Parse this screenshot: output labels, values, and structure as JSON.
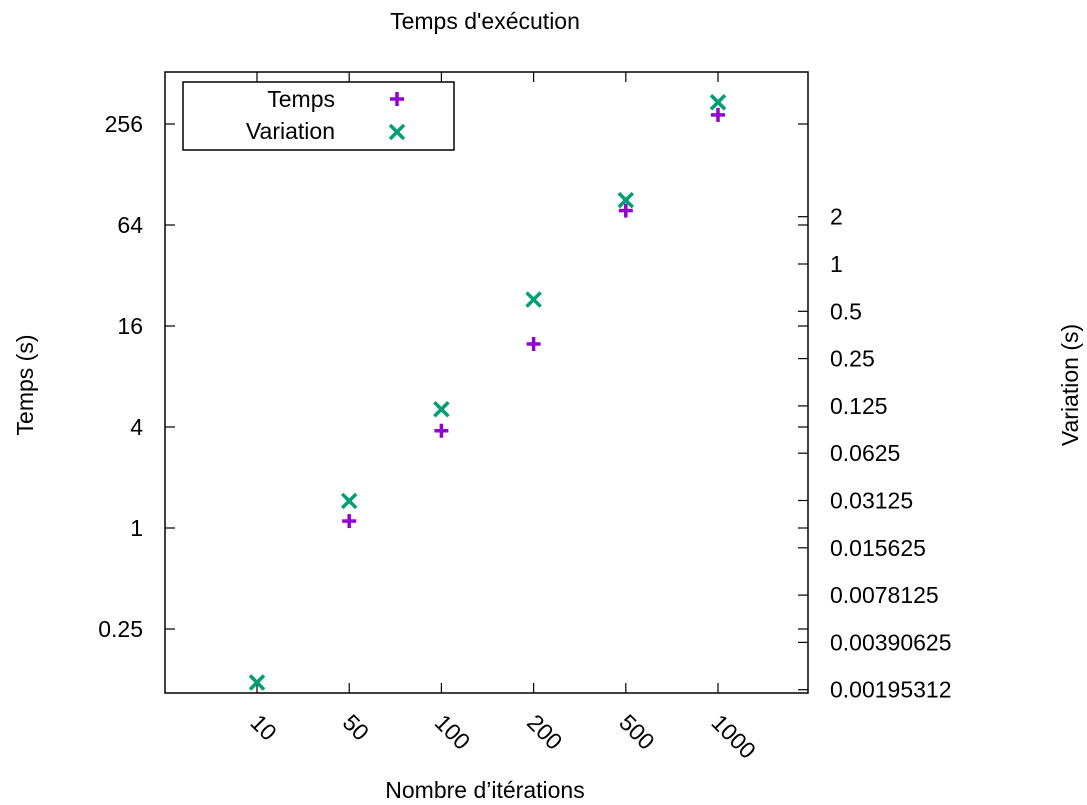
{
  "chart_data": {
    "type": "scatter",
    "title": "Temps d'exécution",
    "xlabel": "Nombre d’itérations",
    "ylabel": "Temps (s)",
    "y2label": "Variation (s)",
    "categories": [
      "10",
      "50",
      "100",
      "200",
      "500",
      "1000"
    ],
    "y_scale": "log2",
    "y_ticks": [
      "0.25",
      "1",
      "4",
      "16",
      "64",
      "256"
    ],
    "y2_scale": "log2",
    "y2_ticks": [
      "0.00195312",
      "0.00390625",
      "0.0078125",
      "0.015625",
      "0.03125",
      "0.0625",
      "0.125",
      "0.25",
      "0.5",
      "1",
      "2"
    ],
    "legend_position": "top-left",
    "grid": false,
    "series": [
      {
        "name": "Temps",
        "marker": "plus",
        "color": "#9400d3",
        "axis": "y",
        "values": [
          null,
          1.1,
          3.8,
          12.5,
          78,
          290
        ]
      },
      {
        "name": "Variation",
        "marker": "x",
        "color": "#009e73",
        "axis": "y",
        "values": [
          0.12,
          1.45,
          5.1,
          23,
          90,
          345
        ]
      }
    ]
  }
}
